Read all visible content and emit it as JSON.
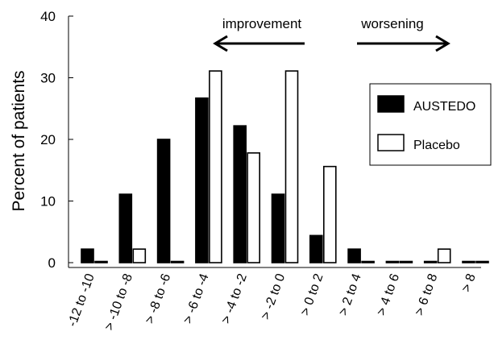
{
  "chart_data": {
    "type": "bar",
    "ylabel": "Percent of patients",
    "ylim": [
      0,
      40
    ],
    "yticks": [
      0,
      10,
      20,
      30,
      40
    ],
    "categories": [
      "-12 to -10",
      "> -10 to -8",
      "> -8 to -6",
      "> -6 to -4",
      "> -4 to -2",
      "> -2 to 0",
      "> 0 to 2",
      "> 2 to 4",
      "> 4 to 6",
      "> 6 to 8",
      "> 8"
    ],
    "series": [
      {
        "name": "AUSTEDO",
        "color": "#000000",
        "values": [
          2.2,
          11.1,
          20.0,
          26.7,
          22.2,
          11.1,
          4.4,
          2.2,
          0,
          0,
          0
        ]
      },
      {
        "name": "Placebo",
        "color": "#ffffff",
        "values": [
          0,
          2.2,
          0,
          31.1,
          17.8,
          31.1,
          15.6,
          0,
          0,
          2.2,
          0
        ]
      }
    ],
    "annotations": [
      {
        "text": "improvement",
        "arrow": "left"
      },
      {
        "text": "worsening",
        "arrow": "right"
      }
    ],
    "legend_position": "right"
  }
}
